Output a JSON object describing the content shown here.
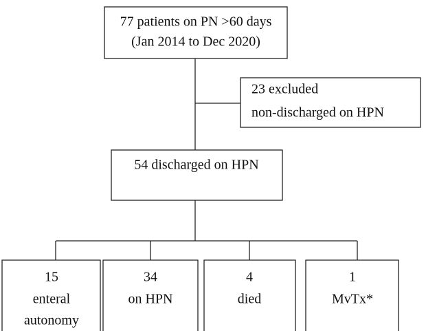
{
  "nodes": [
    {
      "lines": [
        "77 patients on PN >60 days",
        "(Jan 2014 to Dec 2020)"
      ]
    },
    {
      "lines": [
        "23 excluded",
        "non-discharged on HPN"
      ]
    },
    {
      "lines": [
        "54 discharged on HPN"
      ]
    },
    {
      "lines": [
        "15",
        "enteral",
        "autonomy"
      ]
    },
    {
      "lines": [
        "34",
        "on HPN"
      ]
    },
    {
      "lines": [
        "4",
        "died"
      ]
    },
    {
      "lines": [
        "1",
        "MvTx*"
      ]
    }
  ]
}
